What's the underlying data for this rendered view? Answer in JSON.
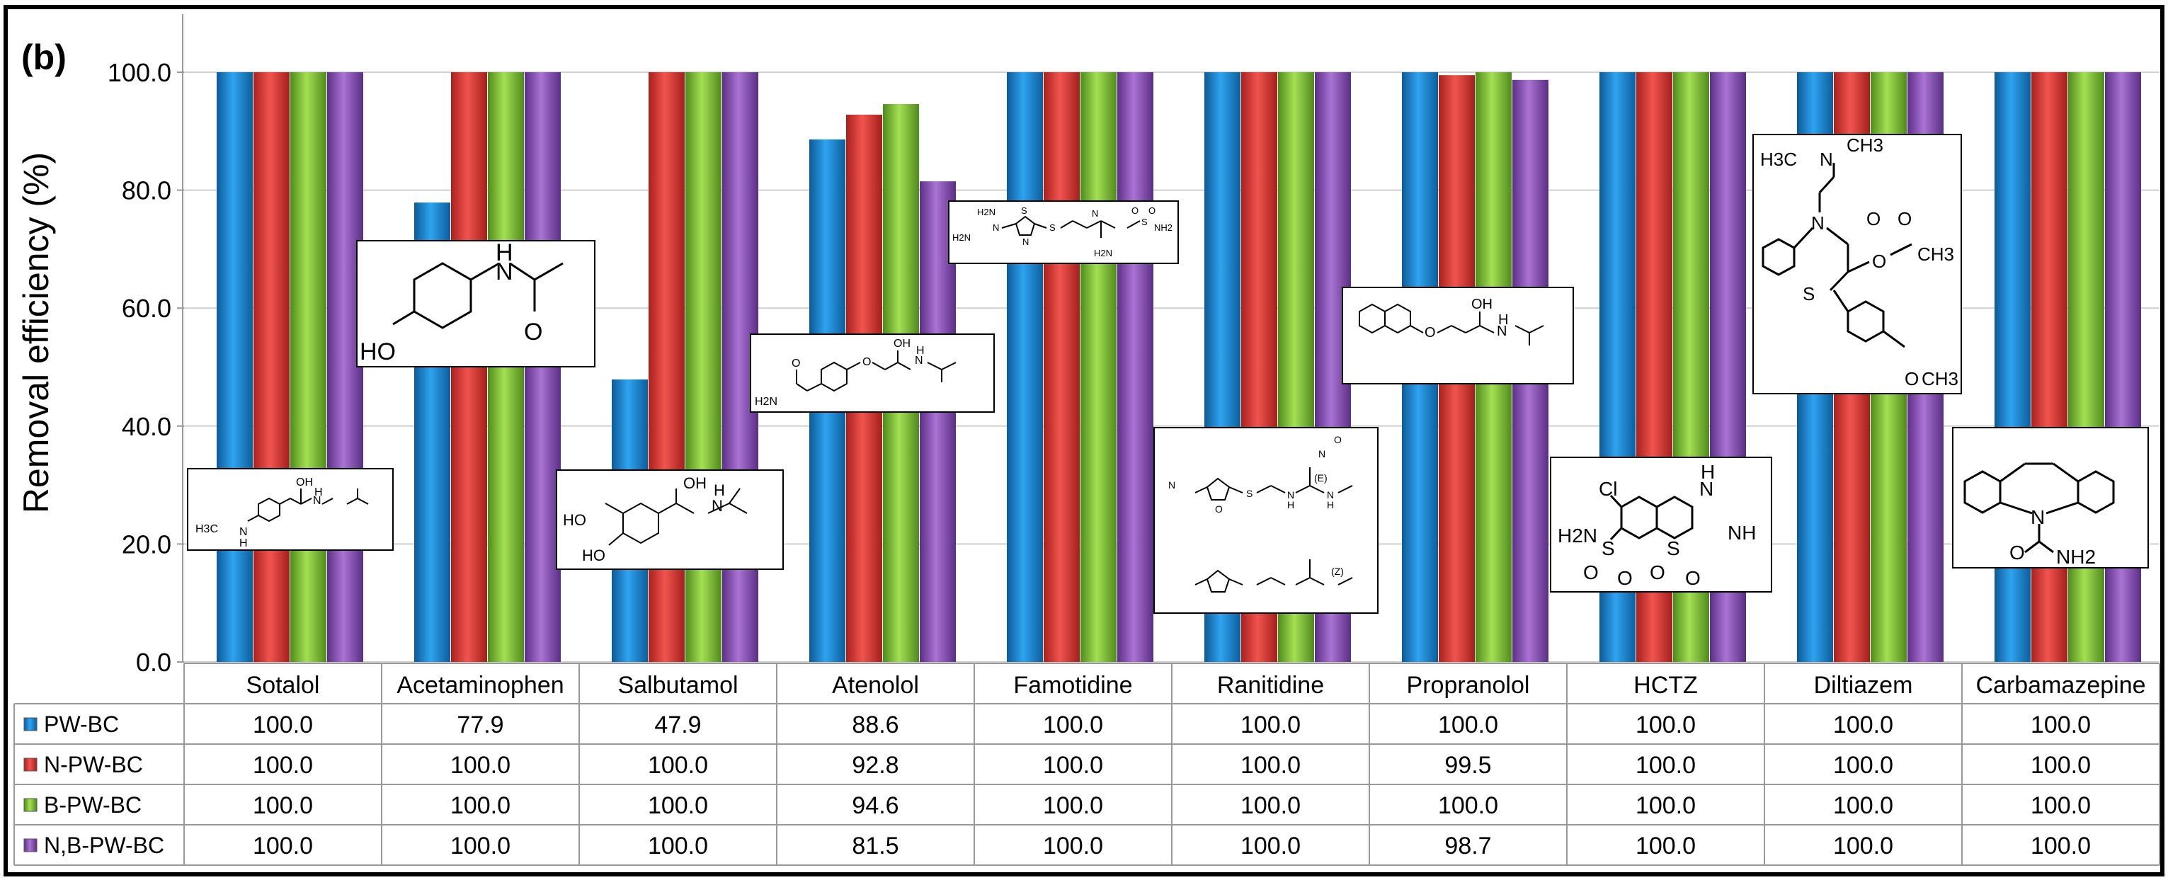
{
  "panel_label": "(b)",
  "chart_data": {
    "type": "bar",
    "title": "",
    "xlabel": "",
    "ylabel": "Removal efficiency (%)",
    "ylim": [
      0,
      100
    ],
    "yticks": [
      "0.0",
      "20.0",
      "40.0",
      "60.0",
      "80.0",
      "100.0"
    ],
    "grid": true,
    "categories": [
      "Sotalol",
      "Acetaminophen",
      "Salbutamol",
      "Atenolol",
      "Famotidine",
      "Ranitidine",
      "Propranolol",
      "HCTZ",
      "Diltiazem",
      "Carbamazepine"
    ],
    "series": [
      {
        "name": "PW-BC",
        "color": "#1a8fd6",
        "values": [
          100.0,
          77.9,
          47.9,
          88.6,
          100.0,
          100.0,
          100.0,
          100.0,
          100.0,
          100.0
        ],
        "labels": [
          "100.0",
          "77.9",
          "47.9",
          "88.6",
          "100.0",
          "100.0",
          "100.0",
          "100.0",
          "100.0",
          "100.0"
        ]
      },
      {
        "name": "N-PW-BC",
        "color": "#e8413c",
        "values": [
          100.0,
          100.0,
          100.0,
          92.8,
          100.0,
          100.0,
          99.5,
          100.0,
          100.0,
          100.0
        ],
        "labels": [
          "100.0",
          "100.0",
          "100.0",
          "92.8",
          "100.0",
          "100.0",
          "99.5",
          "100.0",
          "100.0",
          "100.0"
        ]
      },
      {
        "name": "B-PW-BC",
        "color": "#8dce3c",
        "values": [
          100.0,
          100.0,
          100.0,
          94.6,
          100.0,
          100.0,
          100.0,
          100.0,
          100.0,
          100.0
        ],
        "labels": [
          "100.0",
          "100.0",
          "100.0",
          "94.6",
          "100.0",
          "100.0",
          "100.0",
          "100.0",
          "100.0",
          "100.0"
        ]
      },
      {
        "name": "N,B-PW-BC",
        "color": "#9a5ec4",
        "values": [
          100.0,
          100.0,
          100.0,
          81.5,
          100.0,
          100.0,
          98.7,
          100.0,
          100.0,
          100.0
        ],
        "labels": [
          "100.0",
          "100.0",
          "100.0",
          "81.5",
          "100.0",
          "100.0",
          "98.7",
          "100.0",
          "100.0",
          "100.0"
        ]
      }
    ]
  },
  "structure_labels": {
    "sotalol": {
      "atoms": [
        "OH",
        "H3C",
        "N",
        "H",
        "N",
        "H"
      ]
    },
    "acetaminophen": {
      "atoms": [
        "H",
        "N",
        "HO",
        "O"
      ]
    },
    "salbutamol": {
      "atoms": [
        "OH",
        "HO",
        "HO",
        "N",
        "H"
      ]
    },
    "atenolol": {
      "atoms": [
        "OH",
        "O",
        "N",
        "H",
        "H2N",
        "O"
      ]
    },
    "famotidine": {
      "atoms": [
        "H2N",
        "H2N",
        "N",
        "S",
        "N",
        "S",
        "N",
        "H2N",
        "NH2",
        "S",
        "O",
        "O"
      ]
    },
    "ranitidine": {
      "atoms": [
        "N",
        "O",
        "S",
        "N",
        "H",
        "N",
        "H",
        "N",
        "O",
        "(E)",
        "(Z)"
      ]
    },
    "propranolol": {
      "atoms": [
        "OH",
        "O",
        "N",
        "H"
      ]
    },
    "hctz": {
      "atoms": [
        "Cl",
        "H",
        "N",
        "NH",
        "H2N",
        "S",
        "S",
        "O",
        "O",
        "O",
        "O"
      ]
    },
    "diltiazem": {
      "atoms": [
        "H3C",
        "N",
        "CH3",
        "N",
        "O",
        "O",
        "CH3",
        "O",
        "S",
        "O",
        "CH3"
      ]
    },
    "carbamazepine": {
      "atoms": [
        "N",
        "O",
        "NH2"
      ]
    }
  }
}
